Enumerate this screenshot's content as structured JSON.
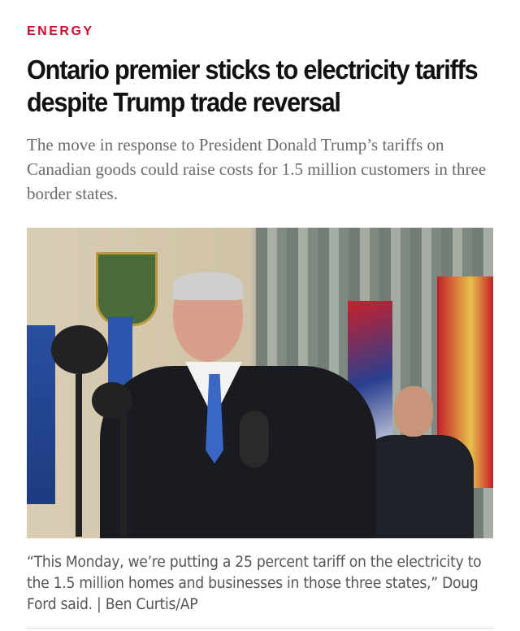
{
  "article": {
    "category": "ENERGY",
    "headline": "Ontario premier sticks to electricity tariffs despite Trump trade reversal",
    "dek": "The move in response to President Donald Trump’s tariffs on Canadian goods could raise costs for 1.5 million customers in three border states.",
    "photo": {
      "caption": "“This Monday, we’re putting a 25 percent tariff on the electricity to the 1.5 million homes and businesses in those three states,” Doug Ford said. | Ben Curtis/AP"
    }
  },
  "colors": {
    "accent": "#c8102e",
    "headline": "#111111",
    "dek": "#6b6b6b",
    "caption": "#555555"
  }
}
